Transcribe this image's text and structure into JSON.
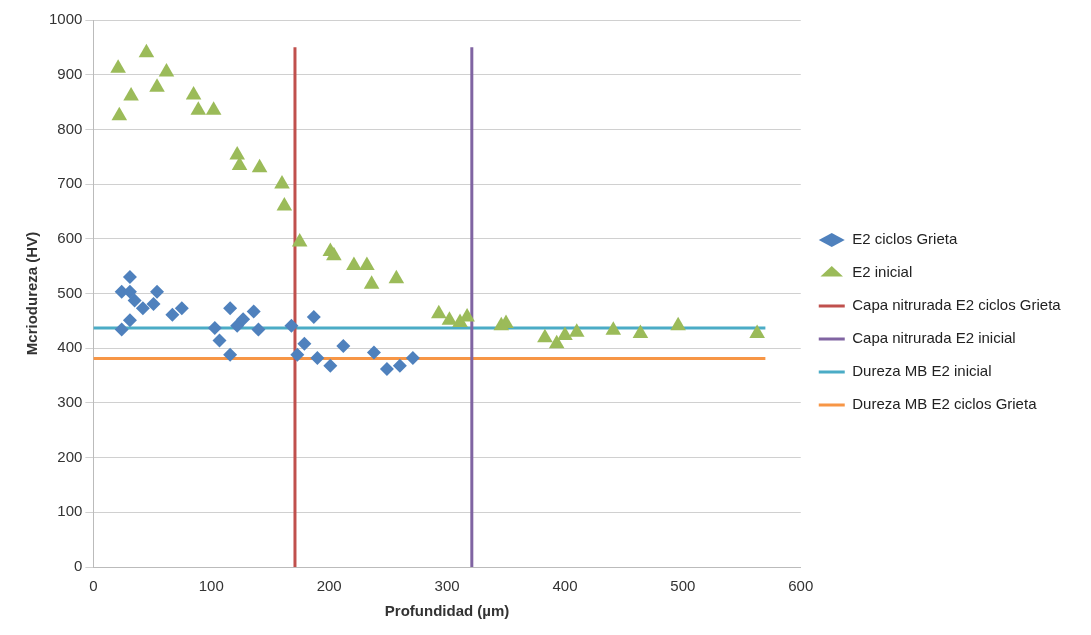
{
  "chart_data": {
    "type": "scatter",
    "xlabel": "Profundidad (µm)",
    "ylabel": "Mcriodureza (HV)",
    "xlim": [
      0,
      600
    ],
    "xticks": [
      0,
      100,
      200,
      300,
      400,
      500,
      600
    ],
    "ylim": [
      0,
      1000
    ],
    "yticks": [
      0,
      100,
      200,
      300,
      400,
      500,
      600,
      700,
      800,
      900,
      1000
    ],
    "grid": "y",
    "legend": "right",
    "series": [
      {
        "name": "E2 ciclos Grieta",
        "color": "#4f81bd",
        "marker": "diamond",
        "x": [
          31,
          24,
          31,
          35,
          54,
          42,
          51,
          67,
          75,
          24,
          31,
          103,
          107,
          116,
          122,
          116,
          136,
          140,
          127,
          168,
          187,
          179,
          173,
          190,
          212,
          201,
          238,
          249,
          260,
          271
        ],
        "values": [
          530,
          503,
          503,
          487,
          503,
          473,
          481,
          461,
          473,
          434,
          451,
          437,
          414,
          473,
          441,
          388,
          467,
          434,
          453,
          441,
          457,
          408,
          388,
          382,
          404,
          368,
          392,
          362,
          368,
          382
        ]
      },
      {
        "name": "E2 inicial",
        "color": "#9bbb59",
        "marker": "triangle",
        "x": [
          21,
          22,
          32,
          45,
          54,
          62,
          85,
          89,
          102,
          122,
          124,
          141,
          160,
          162,
          175,
          201,
          204,
          221,
          232,
          236,
          257,
          293,
          302,
          311,
          317,
          346,
          350,
          383,
          393,
          400,
          410,
          441,
          464,
          496,
          563
        ],
        "values": [
          912,
          825,
          861,
          940,
          877,
          905,
          863,
          835,
          835,
          753,
          734,
          730,
          700,
          660,
          594,
          577,
          569,
          551,
          551,
          517,
          527,
          463,
          451,
          447,
          457,
          441,
          445,
          419,
          408,
          423,
          429,
          433,
          427,
          441,
          427
        ]
      },
      {
        "name": "Capa nitrurada E2 ciclos Grieta",
        "type": "line",
        "color": "#c0504d",
        "marker": "none",
        "x": [
          171,
          171
        ],
        "values": [
          0,
          950
        ]
      },
      {
        "name": "Capa nitrurada E2 inicial",
        "type": "line",
        "color": "#8064a2",
        "marker": "none",
        "x": [
          321,
          321
        ],
        "values": [
          0,
          950
        ]
      },
      {
        "name": "Dureza MB E2 inicial",
        "type": "line",
        "color": "#4bacc6",
        "marker": "none",
        "x": [
          0,
          570
        ],
        "values": [
          437,
          437
        ]
      },
      {
        "name": "Dureza MB E2 ciclos Grieta",
        "type": "line",
        "color": "#f79646",
        "marker": "none",
        "x": [
          0,
          570
        ],
        "values": [
          381,
          381
        ]
      }
    ]
  }
}
